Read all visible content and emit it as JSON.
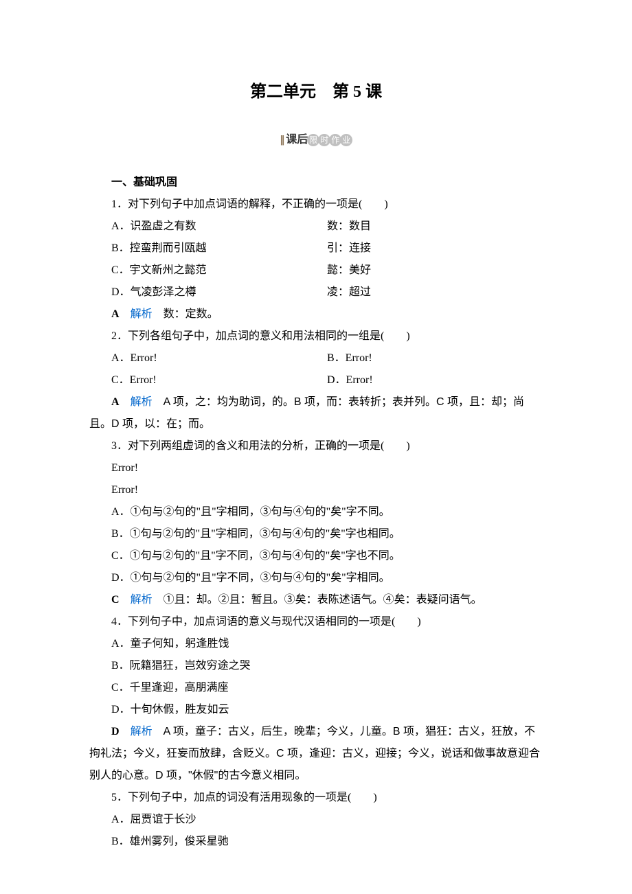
{
  "page_title": "第二单元　第 5 课",
  "subtitle": {
    "prefix_bars": "|||",
    "text1": "课后",
    "badge1": "限",
    "badge2": "时",
    "badge3": "作",
    "badge4": "业"
  },
  "section1_heading": "一、基础巩固",
  "q1": {
    "stem": "1．对下列句子中加点词语的解释，不正确的一项是(　　)",
    "optA_left": "A．识盈虚之有数",
    "optA_right": "数：数目",
    "optB_left": "B．控蛮荆而引瓯越",
    "optB_right": "引：连接",
    "optC_left": "C．宇文新州之懿范",
    "optC_right": "懿：美好",
    "optD_left": "D．气凌彭泽之樽",
    "optD_right": "凌：超过",
    "answer": "A",
    "analysis_label": "解析",
    "analysis_text": "　数：定数。"
  },
  "q2": {
    "stem": "2．下列各组句子中，加点词的意义和用法相同的一组是(　　)",
    "optA": "A．Error!",
    "optB": "B．Error!",
    "optC": "C．Error!",
    "optD": "D．Error!",
    "answer": "A",
    "analysis_label": "解析",
    "analysis_text": "　A 项，之：均为助词，的。B 项，而：表转折；表并列。C 项，且：却；尚且。D 项，以：在；而。"
  },
  "q3": {
    "stem": "3．对下列两组虚词的含义和用法的分析，正确的一项是(　　)",
    "err1": "Error!",
    "err2": "Error!",
    "optA": "A．①句与②句的\"且\"字相同，③句与④句的\"矣\"字不同。",
    "optB": "B．①句与②句的\"且\"字相同，③句与④句的\"矣\"字也相同。",
    "optC": "C．①句与②句的\"且\"字不同，③句与④句的\"矣\"字也不同。",
    "optD": "D．①句与②句的\"且\"字不同，③句与④句的\"矣\"字相同。",
    "answer": "C",
    "analysis_label": "解析",
    "analysis_text": "　①且：却。②且：暂且。③矣：表陈述语气。④矣：表疑问语气。"
  },
  "q4": {
    "stem": "4．下列句子中，加点词语的意义与现代汉语相同的一项是(　　)",
    "optA": "A．童子何知，躬逢胜饯",
    "optB": "B．阮籍猖狂，岂效穷途之哭",
    "optC": "C．千里逢迎，高朋满座",
    "optD": "D．十旬休假，胜友如云",
    "answer": "D",
    "analysis_label": "解析",
    "analysis_text": "　A 项，童子：古义，后生，晚辈；今义，儿童。B 项，猖狂：古义，狂放，不拘礼法；今义，狂妄而放肆，含贬义。C 项，逢迎：古义，迎接；今义，说话和做事故意迎合别人的心意。D 项，\"休假\"的古今意义相同。"
  },
  "q5": {
    "stem": "5．下列句子中，加点的词没有活用现象的一项是(　　)",
    "optA": "A．屈贾谊于长沙",
    "optB": "B．雄州雾列，俊采星驰"
  }
}
